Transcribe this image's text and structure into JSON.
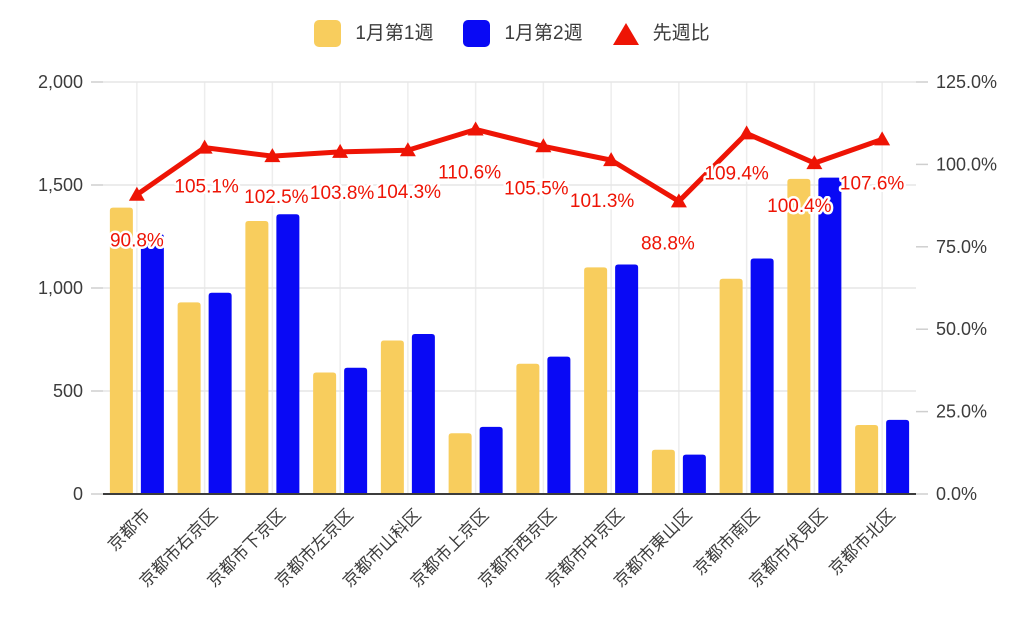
{
  "page": {
    "background": "#ffffff"
  },
  "legend": {
    "position": "top-center",
    "items": [
      {
        "label": "1月第1週",
        "marker": "square",
        "color": "#f8cd5d"
      },
      {
        "label": "1月第2週",
        "marker": "square",
        "color": "#0909f5"
      },
      {
        "label": "先週比",
        "marker": "triangle",
        "color": "#ee1405"
      }
    ]
  },
  "chart_data": {
    "type": "combo",
    "subtype": "grouped-bars-with-line",
    "title": "",
    "categories": [
      "京都市",
      "京都市右京区",
      "京都市下京区",
      "京都市左京区",
      "京都市山科区",
      "京都市上京区",
      "京都市西京区",
      "京都市中京区",
      "京都市東山区",
      "京都市南区",
      "京都市伏見区",
      "京都市北区"
    ],
    "series": [
      {
        "name": "1月第1週",
        "type": "bar",
        "axis": "left",
        "color": "#f8cd5d",
        "values": [
          1390,
          930,
          1325,
          590,
          745,
          295,
          632,
          1100,
          215,
          1045,
          1530,
          335
        ]
      },
      {
        "name": "1月第2週",
        "type": "bar",
        "axis": "left",
        "color": "#0909f5",
        "values": [
          1262,
          977,
          1358,
          613,
          777,
          326,
          667,
          1114,
          191,
          1143,
          1536,
          360
        ]
      },
      {
        "name": "先週比",
        "type": "line",
        "axis": "right",
        "color": "#ee1405",
        "marker": "triangle",
        "values": [
          90.8,
          105.1,
          102.5,
          103.8,
          104.3,
          110.6,
          105.5,
          101.3,
          88.8,
          109.4,
          100.4,
          107.6
        ],
        "labels": [
          "90.8%",
          "105.1%",
          "102.5%",
          "103.8%",
          "104.3%",
          "110.6%",
          "105.5%",
          "101.3%",
          "88.8%",
          "109.4%",
          "100.4%",
          "107.6%"
        ]
      }
    ],
    "left_axis": {
      "min": 0,
      "max": 2000,
      "ticks": [
        {
          "label": "0",
          "value": 0
        },
        {
          "label": "500",
          "value": 500
        },
        {
          "label": "1,000",
          "value": 1000
        },
        {
          "label": "1,500",
          "value": 1500
        },
        {
          "label": "2,000",
          "value": 2000
        }
      ]
    },
    "right_axis": {
      "min": 0,
      "max": 125,
      "ticks": [
        {
          "label": "0.0%",
          "value": 0
        },
        {
          "label": "25.0%",
          "value": 25
        },
        {
          "label": "50.0%",
          "value": 50
        },
        {
          "label": "75.0%",
          "value": 75
        },
        {
          "label": "100.0%",
          "value": 100
        },
        {
          "label": "125.0%",
          "value": 125
        }
      ]
    },
    "grid": true,
    "legend_position": "top",
    "colors": {
      "grid_line": "#e6e6e6",
      "vertical_grid_line": "#ededed",
      "baseline": "#3c3c3c",
      "tick_mark": "#cfcfcf",
      "axis_text": "#3c3c3c",
      "data_label_text": "#ee1405",
      "data_label_halo": "#ffffff"
    }
  }
}
